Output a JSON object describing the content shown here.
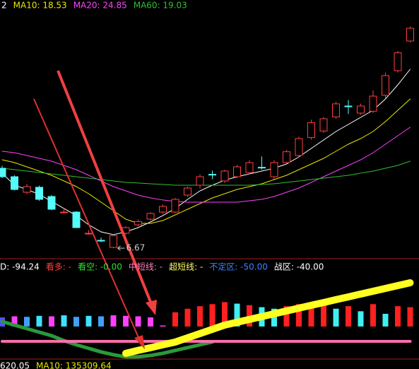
{
  "chart_data": [
    {
      "type": "candlestick",
      "legend": [
        {
          "text": "2",
          "color": "#ffffff"
        },
        {
          "text": "MA10: 18.53",
          "color": "#e8e800"
        },
        {
          "text": "MA20: 24.85",
          "color": "#ff40ff"
        },
        {
          "text": "MA60: 19.03",
          "color": "#30c030"
        }
      ],
      "ylim": [
        6,
        33
      ],
      "up_color": "#ff4040",
      "down_color": "#54fcfc",
      "open": [
        15.15,
        14.25,
        12.6,
        13.13,
        12.15,
        10.5,
        10.5,
        8.25,
        7.5,
        6.75,
        8.25,
        9.15,
        9.75,
        10.5,
        10.5,
        12.3,
        13.35,
        14.5,
        13.8,
        14.25,
        14.7,
        15.25,
        14.25,
        15.75,
        16.5,
        18.4,
        19.1,
        20.6,
        21.75,
        21.0,
        21.2,
        22.9,
        25.5,
        28.65
      ],
      "high": [
        15.4,
        14.4,
        13.5,
        13.3,
        12.3,
        10.95,
        10.6,
        8.6,
        7.8,
        8.1,
        9.0,
        9.7,
        10.5,
        11.3,
        12.0,
        13.2,
        14.5,
        14.9,
        15.0,
        15.5,
        16.0,
        16.4,
        16.0,
        17.1,
        18.5,
        20.3,
        20.6,
        22.2,
        22.4,
        22.0,
        23.4,
        25.3,
        27.6,
        30.2
      ],
      "low": [
        14.1,
        12.8,
        12.4,
        11.7,
        10.7,
        10.5,
        8.8,
        8.1,
        7.3,
        6.67,
        8.1,
        9.0,
        9.6,
        10.3,
        10.4,
        12.1,
        13.0,
        14.0,
        13.6,
        14.1,
        14.5,
        15.0,
        14.0,
        15.6,
        16.3,
        18.2,
        18.9,
        20.4,
        20.9,
        20.8,
        21.0,
        22.6,
        25.3,
        28.5
      ],
      "close": [
        14.25,
        12.9,
        13.2,
        11.85,
        10.8,
        10.5,
        8.85,
        8.25,
        7.45,
        8.0,
        8.85,
        9.5,
        10.35,
        11.1,
        11.85,
        13.05,
        14.25,
        14.45,
        14.85,
        15.3,
        15.75,
        15.2,
        15.75,
        16.9,
        18.3,
        20.0,
        20.4,
        21.98,
        21.7,
        21.75,
        22.8,
        24.98,
        27.4,
        30.0
      ],
      "lines": [
        {
          "color": "#ffffff",
          "values": [
            14.63,
            13.35,
            12.9,
            12.38,
            11.63,
            10.88,
            10.13,
            9.15,
            8.4,
            8.1,
            8.4,
            8.85,
            9.45,
            10.13,
            10.88,
            11.85,
            12.75,
            13.35,
            13.88,
            14.25,
            14.55,
            14.85,
            15.15,
            15.6,
            16.35,
            17.25,
            18.15,
            19.05,
            19.8,
            20.55,
            21.3,
            22.5,
            24.0,
            25.65
          ]
        },
        {
          "color": "#e8e800",
          "values": [
            16.05,
            15.75,
            15.3,
            14.85,
            14.4,
            13.8,
            13.2,
            12.45,
            11.55,
            10.65,
            9.75,
            9.3,
            9.3,
            9.6,
            10.2,
            10.8,
            11.4,
            12.0,
            12.45,
            12.9,
            13.2,
            13.5,
            13.95,
            14.4,
            15.0,
            15.6,
            16.2,
            16.95,
            17.7,
            18.3,
            19.05,
            20.1,
            21.3,
            22.5
          ]
        },
        {
          "color": "#ff40ff",
          "values": [
            16.95,
            16.8,
            16.5,
            16.2,
            15.9,
            15.45,
            15.0,
            14.4,
            13.8,
            13.2,
            12.75,
            12.3,
            12.0,
            11.78,
            11.63,
            11.55,
            11.55,
            11.55,
            11.55,
            11.55,
            11.7,
            11.85,
            12.15,
            12.6,
            13.05,
            13.65,
            14.25,
            14.85,
            15.45,
            16.05,
            16.8,
            17.7,
            18.6,
            19.5
          ]
        },
        {
          "color": "#30c030",
          "values": [
            15.15,
            15.0,
            14.85,
            14.7,
            14.55,
            14.4,
            14.25,
            14.1,
            13.95,
            13.8,
            13.65,
            13.58,
            13.5,
            13.43,
            13.35,
            13.35,
            13.35,
            13.35,
            13.35,
            13.35,
            13.35,
            13.43,
            13.5,
            13.65,
            13.8,
            13.95,
            14.1,
            14.25,
            14.4,
            14.63,
            14.85,
            15.15,
            15.45,
            15.9
          ]
        }
      ]
    },
    {
      "type": "bar",
      "legend": [
        {
          "text": "D: -94.24",
          "color": "#ffffff"
        },
        {
          "text": "看多: -",
          "color": "#ff4040"
        },
        {
          "text": "看空: -0.00",
          "color": "#30e030"
        },
        {
          "text": "中短线: -",
          "color": "#ff80c0"
        },
        {
          "text": "超短线: -",
          "color": "#ffff60"
        },
        {
          "text": "不定区: -50.00",
          "color": "#4080ff"
        },
        {
          "text": "战区: -40.00",
          "color": "#ffffff"
        }
      ],
      "ylim": [
        -60,
        100
      ],
      "values": [
        18,
        20,
        19,
        21,
        20,
        22,
        19,
        21,
        20,
        22,
        21,
        20,
        18,
        2,
        28,
        35,
        40,
        44,
        48,
        45,
        42,
        38,
        35,
        40,
        44,
        38,
        42,
        35,
        40,
        30,
        44,
        25,
        40,
        38
      ],
      "colors": [
        "#5050ff",
        "#ff40ff",
        "#40a0ff",
        "#40e0ff",
        "#ff40ff",
        "#40e0ff",
        "#40a0ff",
        "#40e0ff",
        "#40a0ff",
        "#ff40ff",
        "#ff40ff",
        "#ff40ff",
        "#ff40ff",
        "#ff40ff",
        "#ff2020",
        "#ff2020",
        "#ff2020",
        "#ff2020",
        "#ff2020",
        "#40f0f0",
        "#ff2020",
        "#40f0f0",
        "#40f0f0",
        "#ff2020",
        "#ff2020",
        "#ff2020",
        "#ff2020",
        "#40f0f0",
        "#ff2020",
        "#40f0f0",
        "#ff2020",
        "#40f0f0",
        "#ff2020",
        "#ff2020"
      ],
      "lines": [
        {
          "color": "#2a9a3a",
          "width": 5,
          "values": [
            9.7,
            2.8,
            -4.2,
            -11.1,
            -18,
            -27.8,
            -36,
            -43,
            -50,
            -55.6,
            -59.7,
            -59.7,
            -57,
            -52.8,
            -47,
            -41.7,
            -36,
            -30.6,
            null,
            null,
            null,
            null,
            null,
            null,
            null,
            null,
            null,
            null,
            null,
            null,
            null,
            null,
            null,
            null
          ]
        },
        {
          "color": "#ff70b0",
          "width": 4,
          "values": [
            -29.2,
            -29.2,
            -29.2,
            -29.2,
            -29.2,
            -29.2,
            -29.2,
            -29.2,
            -29.2,
            -29.2,
            -29.2,
            -29.2,
            -29.2,
            -29.2,
            -29.2,
            -29.2,
            -29.2,
            -29.2,
            -29.2,
            -29.2,
            -29.2,
            -29.2,
            -29.2,
            -29.2,
            -29.2,
            -29.2,
            -29.2,
            -29.2,
            -29.2,
            -29.2,
            -29.2,
            -29.2,
            -29.2,
            -29.2
          ]
        },
        {
          "color": "#ffff20",
          "width": 10,
          "values": [
            null,
            null,
            null,
            null,
            null,
            null,
            null,
            null,
            null,
            null,
            -52.8,
            -47,
            -41.7,
            -36,
            -30.6,
            -22.2,
            -13.9,
            -5.6,
            2.8,
            8.3,
            13.9,
            19.4,
            25,
            30.6,
            36.1,
            41.7,
            47.2,
            52.8,
            58.3,
            63.9,
            69.4,
            75,
            80.6,
            86.1
          ]
        }
      ]
    },
    {
      "type": "bar",
      "legend": [
        {
          "text": "620.05",
          "color": "#ffffff"
        },
        {
          "text": "MA10: 135309.64",
          "color": "#e8e800"
        }
      ]
    }
  ]
}
